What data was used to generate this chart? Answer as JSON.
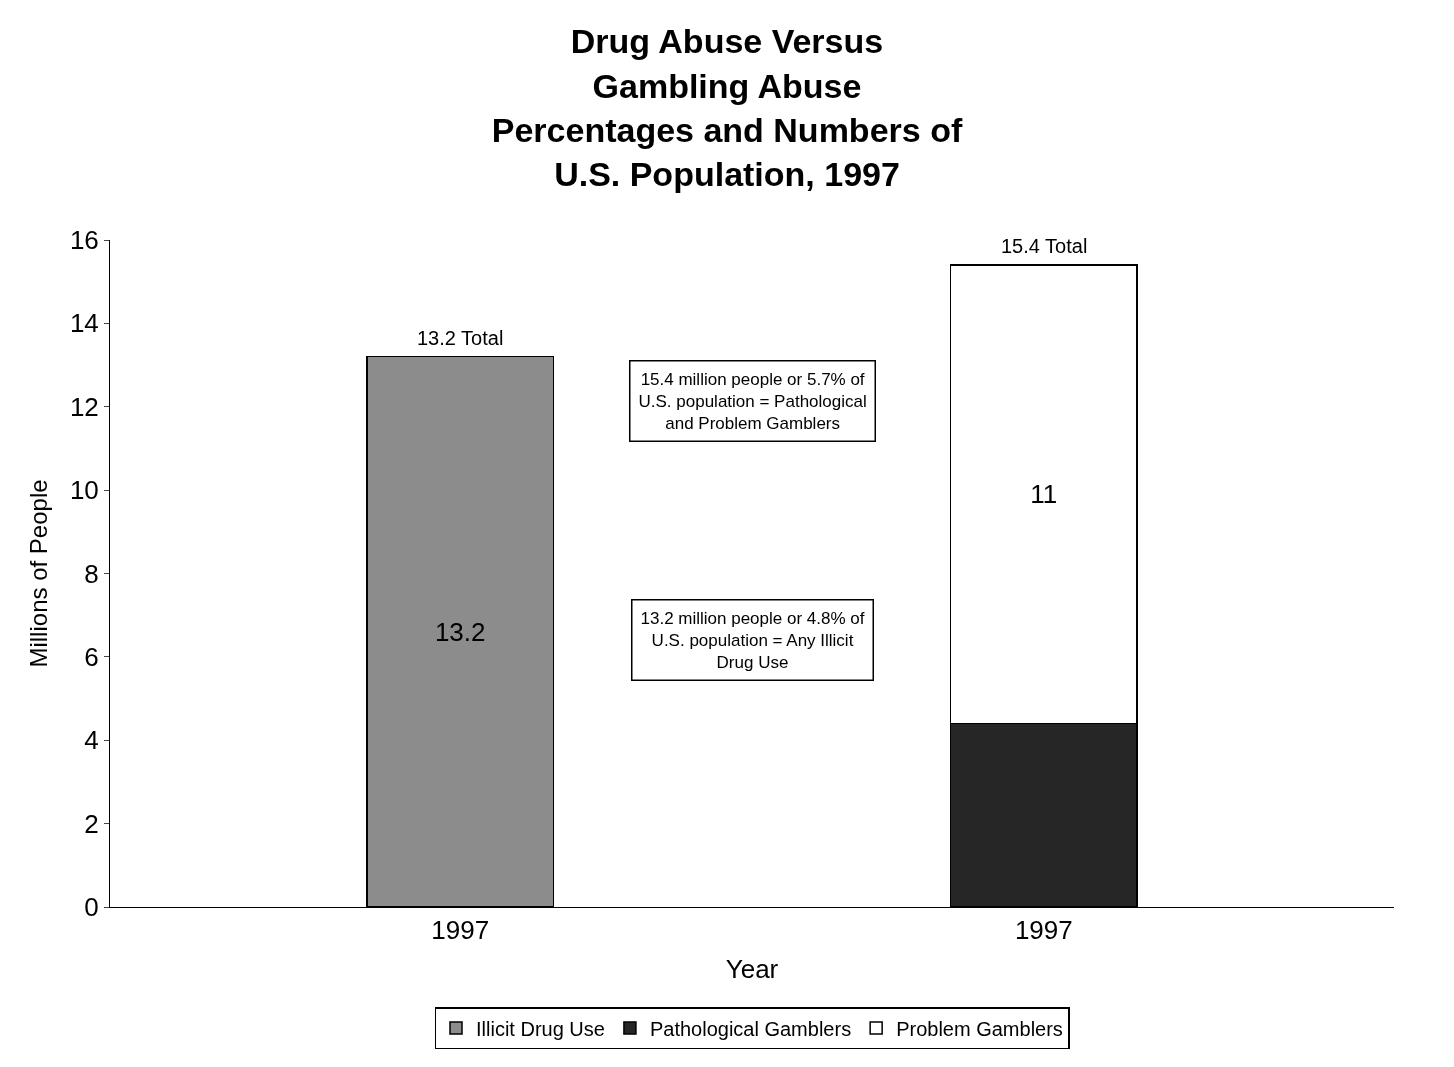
{
  "chart_data": {
    "type": "bar",
    "stacked": true,
    "title": "Drug Abuse Versus Gambling Abuse",
    "subtitle": "Percentages and Numbers of U.S. Population, 1997",
    "xlabel": "Year",
    "ylabel": "Millions of People",
    "categories": [
      "1997",
      "1997"
    ],
    "series": [
      {
        "name": "Illicit Drug Use",
        "color": "#8c8c8c",
        "values": [
          13.2,
          null
        ],
        "value_labels": [
          "13.2",
          null
        ]
      },
      {
        "name": "Pathological Gamblers",
        "color": "#262626",
        "values": [
          null,
          4.4
        ]
      },
      {
        "name": "Problem Gamblers",
        "color": "#ffffff",
        "values": [
          null,
          11
        ],
        "value_labels": [
          null,
          "11"
        ]
      }
    ],
    "totals": [
      "13.2 Total",
      "15.4 Total"
    ],
    "annotations": [
      "15.4 million people or 5.7% of U.S. population = Pathological and Problem Gamblers",
      "13.2 million people or 4.8% of U.S. population = Any Illicit Drug Use"
    ],
    "ylim": [
      0,
      16
    ],
    "yticks": [
      0,
      2,
      4,
      6,
      8,
      10,
      12,
      14,
      16
    ],
    "legend": "bottom"
  }
}
